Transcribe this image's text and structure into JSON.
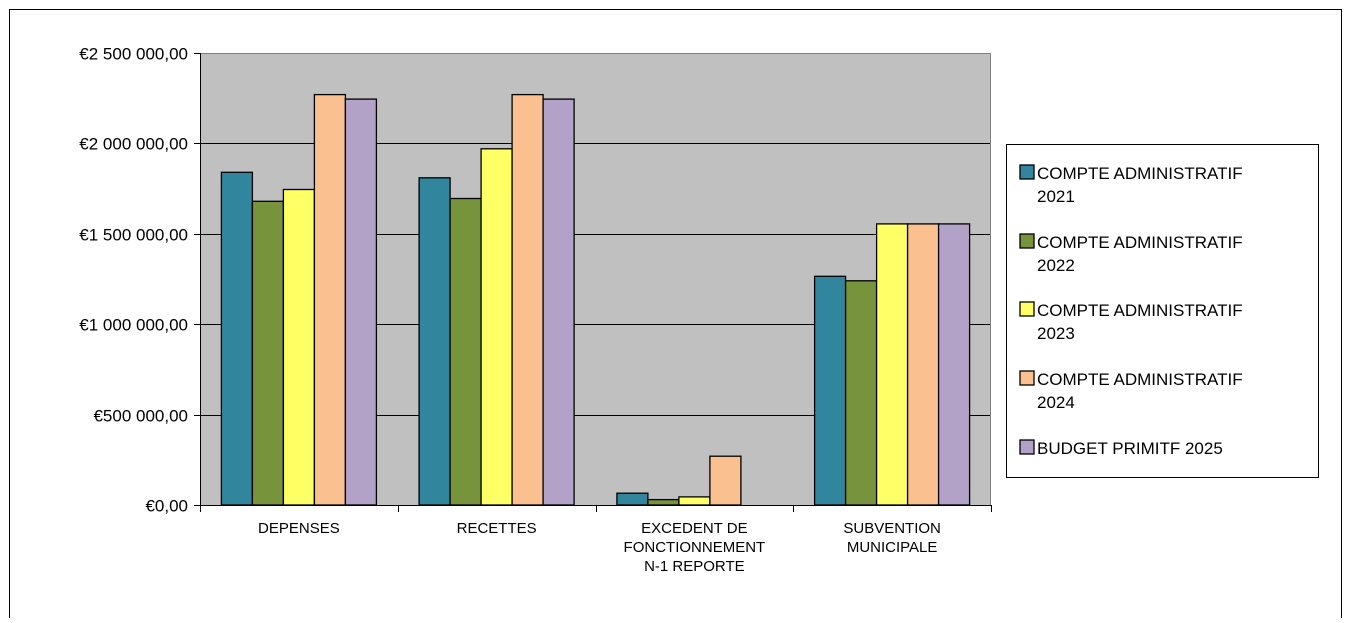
{
  "chart_data": {
    "type": "bar",
    "categories": [
      [
        "DEPENSES"
      ],
      [
        "RECETTES"
      ],
      [
        "EXCEDENT DE",
        "FONCTIONNEMENT",
        "N-1 REPORTE"
      ],
      [
        "SUBVENTION",
        "MUNICIPALE"
      ]
    ],
    "series": [
      {
        "name": [
          "COMPTE ADMINISTRATIF",
          "2021"
        ],
        "color": "#31859c",
        "values": [
          1840000,
          1810000,
          65000,
          1265000
        ]
      },
      {
        "name": [
          "COMPTE ADMINISTRATIF",
          "2022"
        ],
        "color": "#77933c",
        "values": [
          1680000,
          1695000,
          30000,
          1240000
        ]
      },
      {
        "name": [
          "COMPTE ADMINISTRATIF",
          "2023"
        ],
        "color": "#ffff66",
        "values": [
          1745000,
          1970000,
          45000,
          1555000
        ]
      },
      {
        "name": [
          "COMPTE ADMINISTRATIF",
          "2024"
        ],
        "color": "#fac090",
        "values": [
          2270000,
          2270000,
          270000,
          1555000
        ]
      },
      {
        "name": [
          "BUDGET PRIMITF 2025"
        ],
        "color": "#b2a2c7",
        "values": [
          2245000,
          2245000,
          0,
          1555000
        ]
      }
    ],
    "ylim": [
      0,
      2500000
    ],
    "yticks": [
      {
        "value": 0,
        "label": "€0,00"
      },
      {
        "value": 500000,
        "label": "€500 000,00"
      },
      {
        "value": 1000000,
        "label": "€1 000 000,00"
      },
      {
        "value": 1500000,
        "label": "€1 500 000,00"
      },
      {
        "value": 2000000,
        "label": "€2 000 000,00"
      },
      {
        "value": 2500000,
        "label": "€2 500 000,00"
      }
    ],
    "title": "",
    "xlabel": "",
    "ylabel": "",
    "grid": true,
    "legend_position": "right",
    "plot_background": "#c0c0c0"
  }
}
